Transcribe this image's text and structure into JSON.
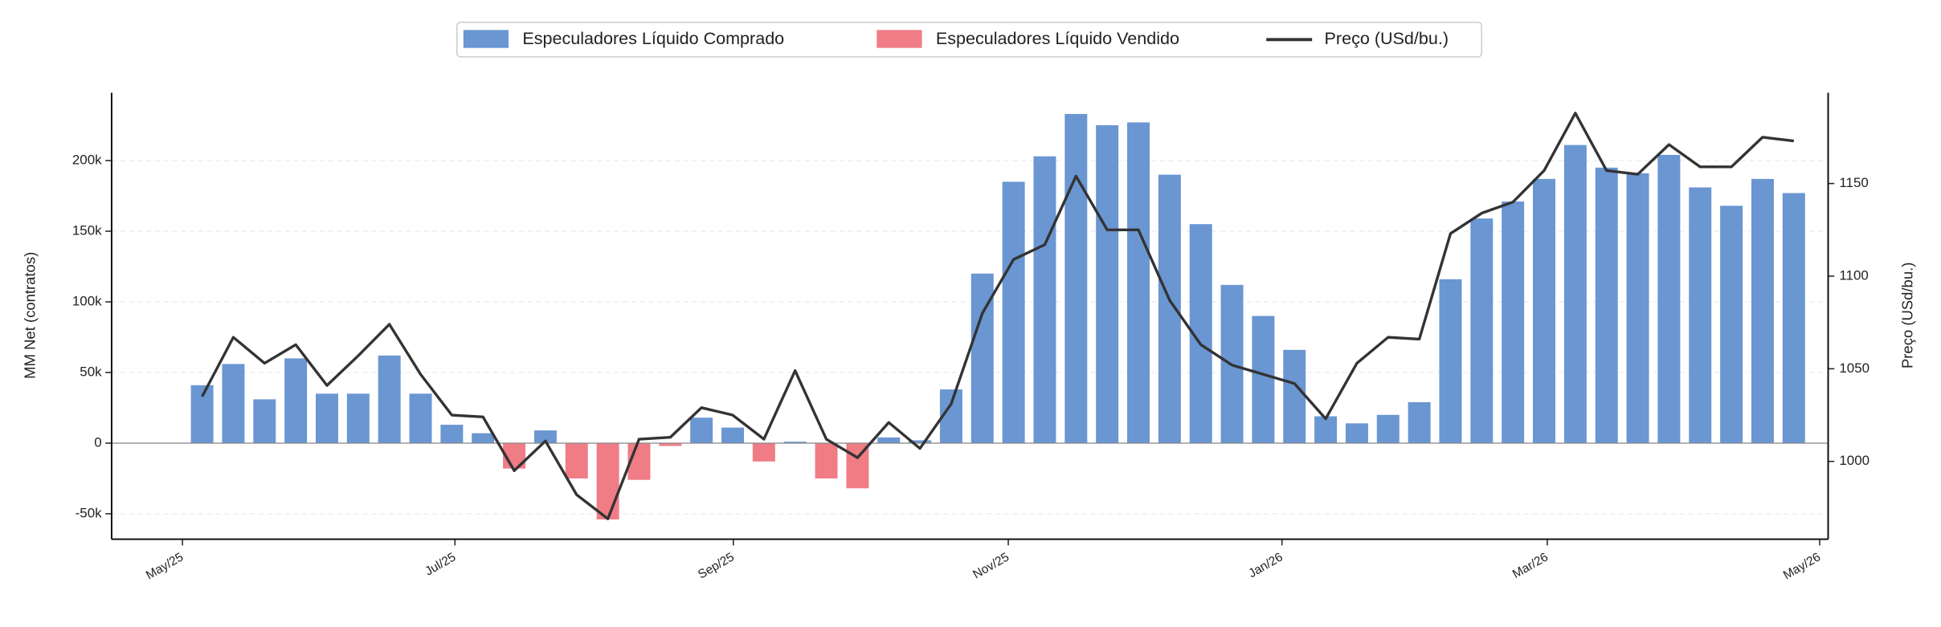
{
  "chart_data": {
    "type": "bar",
    "ylabel": "MM Net (contratos)",
    "y2label": "Preço (USd/bu.)",
    "categories": [
      null,
      null,
      null,
      null,
      null,
      null,
      null,
      null,
      null,
      null,
      null,
      null,
      null,
      null,
      null,
      null,
      null,
      null,
      null,
      null,
      null,
      null,
      null,
      null,
      null,
      null,
      null,
      null,
      null,
      null,
      null,
      null,
      null,
      null,
      null,
      null,
      null,
      null,
      null,
      null,
      null,
      null,
      null,
      null,
      null,
      null,
      null,
      null,
      null,
      null,
      null,
      null
    ],
    "xlim": [
      -2.9,
      52.1
    ],
    "xticks": [
      {
        "value": -0.63,
        "label": "May/25"
      },
      {
        "value": 8.1,
        "label": "Jul/25"
      },
      {
        "value": 17.02,
        "label": "Sep/25"
      },
      {
        "value": 25.83,
        "label": "Nov/25"
      },
      {
        "value": 34.6,
        "label": "Jan/26"
      },
      {
        "value": 43.1,
        "label": "Mar/26"
      },
      {
        "value": 51.83,
        "label": "May/26"
      }
    ],
    "ylim": [
      -68000,
      248000
    ],
    "yticks": [
      {
        "value": -50000,
        "label": "-50k"
      },
      0,
      {
        "value": 50000,
        "label": "50k"
      },
      {
        "value": 100000,
        "label": "100k"
      },
      {
        "value": 150000,
        "label": "150k"
      },
      {
        "value": 200000,
        "label": "200k"
      }
    ],
    "y2lim": [
      958,
      1199
    ],
    "y2ticks": [
      1000,
      1050,
      1100,
      1150
    ],
    "grid": true,
    "legend": "top",
    "series": [
      {
        "name": "Especuladores Líquido Comprado",
        "type": "bar",
        "color": "#6a96d2",
        "values": [
          41000,
          56000,
          31000,
          60000,
          35000,
          35000,
          62000,
          35000,
          13000,
          7000,
          null,
          9000,
          null,
          null,
          null,
          null,
          18000,
          11000,
          null,
          1000,
          null,
          null,
          4000,
          2000,
          38000,
          120000,
          185000,
          203000,
          233000,
          225000,
          227000,
          190000,
          155000,
          112000,
          90000,
          66000,
          19000,
          14000,
          20000,
          29000,
          116000,
          159000,
          171000,
          187000,
          211000,
          195000,
          191000,
          204000,
          181000,
          168000,
          187000,
          177000
        ]
      },
      {
        "name": "Especuladores Líquido Vendido",
        "type": "bar",
        "color": "#f07c86",
        "values": [
          null,
          null,
          null,
          null,
          null,
          null,
          null,
          null,
          null,
          null,
          -18000,
          null,
          -25000,
          -54000,
          -26000,
          -2000,
          null,
          null,
          -13000,
          null,
          -25000,
          -32000,
          null,
          null,
          null,
          null,
          null,
          null,
          null,
          null,
          null,
          null,
          null,
          null,
          null,
          null,
          null,
          null,
          null,
          null,
          null,
          null,
          null,
          null,
          null,
          null,
          null,
          null,
          null,
          null,
          null,
          null
        ]
      },
      {
        "name": "Preço (USd/bu.)",
        "type": "line",
        "axis": "y2",
        "color": "#333333",
        "values": [
          1035,
          1067,
          1053,
          1063,
          1041,
          1057,
          1074,
          1047,
          1025,
          1024,
          995,
          1011,
          982,
          969,
          1012,
          1013,
          1029,
          1025,
          1012,
          1049,
          1012,
          1002,
          1021,
          1007,
          1031,
          1080,
          1109,
          1117,
          1154,
          1125,
          1125,
          1087,
          1063,
          1052,
          1047,
          1042,
          1023,
          1053,
          1067,
          1066,
          1123,
          1134,
          1140,
          1157,
          1188,
          1157,
          1155,
          1171,
          1159,
          1159,
          1175,
          1173
        ]
      }
    ]
  }
}
